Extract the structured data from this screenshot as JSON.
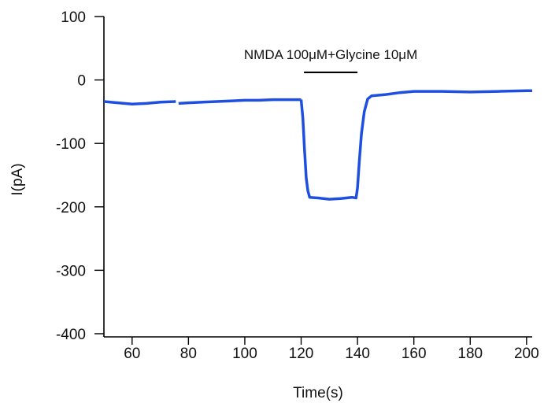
{
  "chart_data": {
    "type": "line",
    "title": "",
    "xlabel": "Time(s)",
    "ylabel": "I(pA)",
    "xlim": [
      50,
      202
    ],
    "ylim": [
      -405,
      100
    ],
    "x_ticks": [
      60,
      80,
      100,
      120,
      140,
      160,
      180,
      200
    ],
    "y_ticks": [
      100,
      0,
      -100,
      -200,
      -300,
      -400
    ],
    "grid": false,
    "legend": "none",
    "series": [
      {
        "color": "#1f4fe0",
        "segments": [
          {
            "x": [
              50,
              55,
              60,
              65,
              70,
              75.5
            ],
            "y": [
              -34,
              -36,
              -38,
              -37,
              -35,
              -34
            ]
          },
          {
            "x": [
              76.5,
              80,
              85,
              90,
              95,
              100,
              105,
              110,
              115,
              120
            ],
            "y": [
              -37,
              -36,
              -35,
              -34,
              -33,
              -32,
              -32,
              -31,
              -31,
              -31
            ]
          },
          {
            "x": [
              120,
              120.6,
              121.2,
              121.8,
              122.4,
              123,
              126,
              130,
              134,
              138,
              139.5,
              140,
              140.6,
              141.4,
              142.4,
              143.6,
              145,
              150,
              155,
              160,
              170,
              180,
              190,
              200,
              202
            ],
            "y": [
              -31,
              -60,
              -110,
              -155,
              -175,
              -185,
              -186,
              -188,
              -187,
              -185,
              -186,
              -170,
              -130,
              -85,
              -50,
              -30,
              -25,
              -23,
              -20,
              -18,
              -18,
              -19,
              -18,
              -17,
              -17
            ]
          }
        ]
      }
    ],
    "annotation": {
      "text": "NMDA 100μM+Glycine 10μM",
      "bar_x": [
        121,
        140
      ],
      "bar_y": 12
    }
  }
}
